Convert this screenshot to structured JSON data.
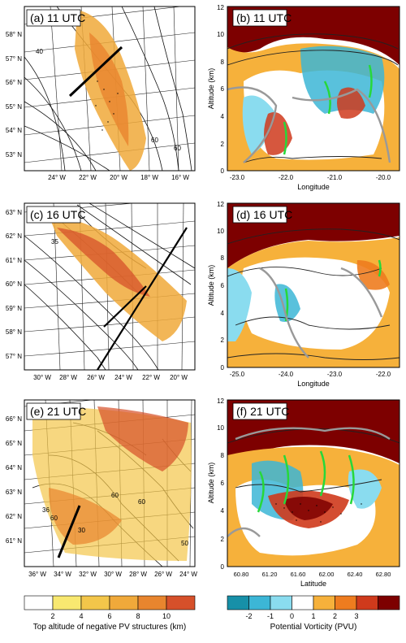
{
  "panels": {
    "a": {
      "label": "(a) 11 UTC",
      "lat_ticks": [
        "53° N",
        "54° N",
        "55° N",
        "56° N",
        "57° N",
        "58° N"
      ],
      "lon_ticks": [
        "24° W",
        "22° W",
        "20° W",
        "18° W",
        "16° W"
      ]
    },
    "b": {
      "label": "(b) 11 UTC",
      "xlabel": "Longitude",
      "ylabel": "Altitude (km)",
      "x_ticks": [
        "-23.0",
        "-22.0",
        "-21.0",
        "-20.0"
      ],
      "y_ticks": [
        "0",
        "2",
        "4",
        "6",
        "8",
        "10",
        "12"
      ]
    },
    "c": {
      "label": "(c) 16 UTC",
      "lat_ticks": [
        "57° N",
        "58° N",
        "59° N",
        "60° N",
        "61° N",
        "62° N",
        "63° N"
      ],
      "lon_ticks": [
        "30° W",
        "28° W",
        "26° W",
        "24° W",
        "22° W",
        "20° W"
      ]
    },
    "d": {
      "label": "(d) 16 UTC",
      "xlabel": "Longitude",
      "ylabel": "Altitude (km)",
      "x_ticks": [
        "-25.0",
        "-24.0",
        "-23.0",
        "-22.0"
      ],
      "y_ticks": [
        "0",
        "2",
        "4",
        "6",
        "8",
        "10",
        "12"
      ]
    },
    "e": {
      "label": "(e) 21 UTC",
      "lat_ticks": [
        "61° N",
        "62° N",
        "63° N",
        "64° N",
        "65° N",
        "66° N"
      ],
      "lon_ticks": [
        "36° W",
        "34° W",
        "32° W",
        "30° W",
        "28° W",
        "26° W",
        "24° W"
      ]
    },
    "f": {
      "label": "(f) 21 UTC",
      "xlabel": "Latitude",
      "ylabel": "Altitude (km)",
      "x_ticks": [
        "60.80",
        "61.20",
        "61.60",
        "62.00",
        "62.40",
        "62.80"
      ],
      "y_ticks": [
        "0",
        "2",
        "4",
        "6",
        "8",
        "10",
        "12"
      ]
    }
  },
  "contour_labels": [
    "40",
    "60",
    "60",
    "35",
    "60",
    "60",
    "36",
    "60",
    "30",
    "50"
  ],
  "colorbars": {
    "left": {
      "title": "Top altitude of negative PV structures (km)",
      "ticks": [
        "2",
        "4",
        "6",
        "8",
        "10"
      ],
      "colors": [
        "#ffffff",
        "#f8e870",
        "#f3c64a",
        "#f0a93a",
        "#e8852e",
        "#d6502a"
      ]
    },
    "right": {
      "title": "Potential Vorticity (PVU)",
      "ticks": [
        "-2",
        "-1",
        "0",
        "1",
        "2",
        "3"
      ],
      "colors": [
        "#1790a8",
        "#3cb6d6",
        "#8adcef",
        "#ffffff",
        "#f6b13b",
        "#ee7c1f",
        "#cf3a1c",
        "#7d0000"
      ]
    }
  },
  "chart_data": [
    {
      "type": "heatmap",
      "panel": "a",
      "title": "(a) 11 UTC",
      "legend": "Top altitude of negative PV structures (km)",
      "lat_range": [
        53,
        58
      ],
      "lon_range": [
        -24,
        -16
      ]
    },
    {
      "type": "heatmap",
      "panel": "b",
      "title": "(b) 11 UTC",
      "xlabel": "Longitude",
      "ylabel": "Altitude (km)",
      "xlim": [
        -23.0,
        -19.5
      ],
      "ylim": [
        0,
        12
      ]
    },
    {
      "type": "heatmap",
      "panel": "c",
      "title": "(c) 16 UTC",
      "legend": "Top altitude of negative PV structures (km)",
      "lat_range": [
        57,
        63
      ],
      "lon_range": [
        -30,
        -20
      ]
    },
    {
      "type": "heatmap",
      "panel": "d",
      "title": "(d) 16 UTC",
      "xlabel": "Longitude",
      "ylabel": "Altitude (km)",
      "xlim": [
        -25.0,
        -21.5
      ],
      "ylim": [
        0,
        12
      ]
    },
    {
      "type": "heatmap",
      "panel": "e",
      "title": "(e) 21 UTC",
      "legend": "Top altitude of negative PV structures (km)",
      "lat_range": [
        61,
        66
      ],
      "lon_range": [
        -36,
        -24
      ]
    },
    {
      "type": "heatmap",
      "panel": "f",
      "title": "(f) 21 UTC",
      "xlabel": "Latitude",
      "ylabel": "Altitude (km)",
      "xlim": [
        60.6,
        63.0
      ],
      "ylim": [
        0,
        12
      ]
    }
  ]
}
